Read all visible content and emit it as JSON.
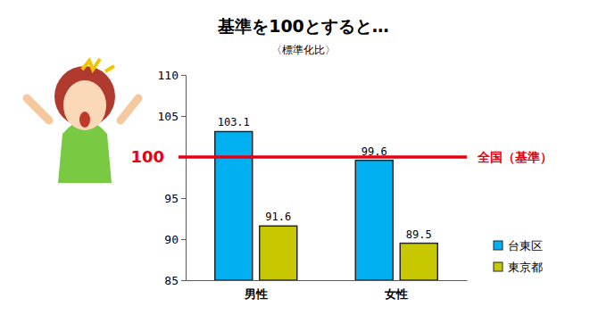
{
  "chart_data": {
    "type": "bar",
    "title": "基準を100とすると…",
    "subtitle": "〈標準化比〉",
    "categories": [
      "男性",
      "女性"
    ],
    "series": [
      {
        "name": "台東区",
        "color": "#00b0f0",
        "values": [
          103.1,
          99.6
        ]
      },
      {
        "name": "東京都",
        "color": "#c8c800",
        "values": [
          91.6,
          89.5
        ]
      }
    ],
    "ylim": [
      85,
      110
    ],
    "yticks": [
      85,
      90,
      95,
      100,
      105,
      110
    ],
    "grid": false,
    "data_labels": true,
    "legend": "right",
    "annotations": [
      {
        "type": "hline",
        "value": 100,
        "label": "全国（基準）",
        "color": "#e60012"
      }
    ]
  }
}
